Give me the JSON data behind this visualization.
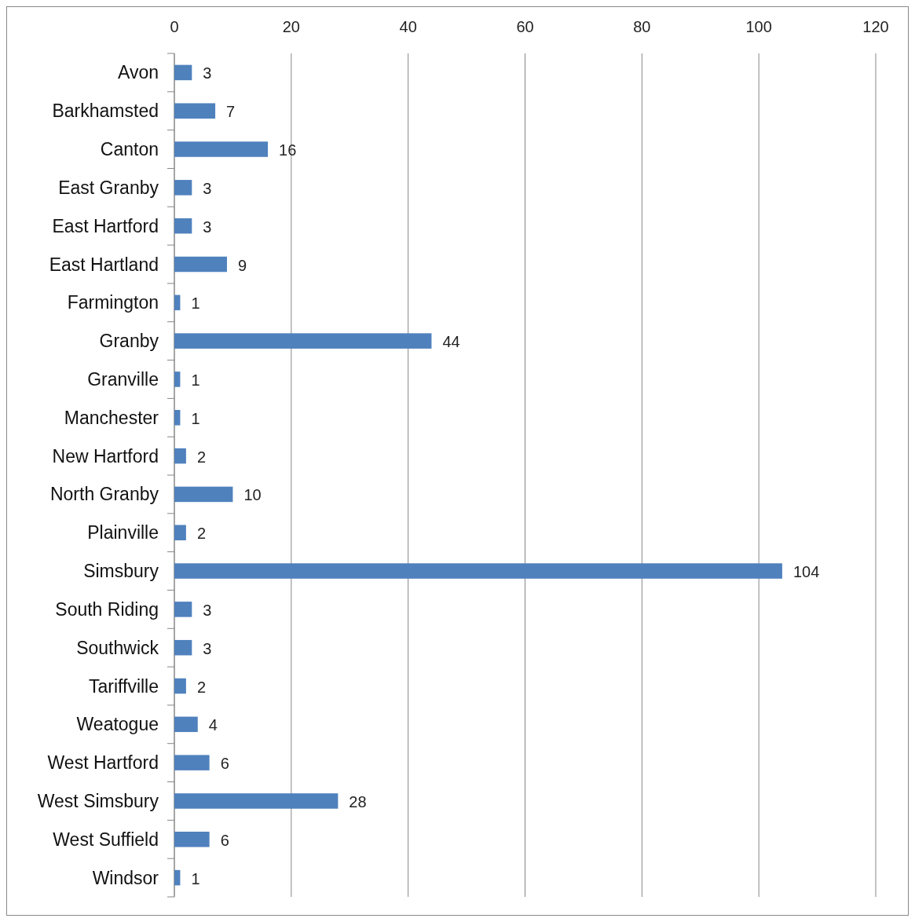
{
  "chart_data": {
    "type": "bar",
    "orientation": "horizontal",
    "categories": [
      "Avon",
      "Barkhamsted",
      "Canton",
      "East Granby",
      "East Hartford",
      "East Hartland",
      "Farmington",
      "Granby",
      "Granville",
      "Manchester",
      "New Hartford",
      "North Granby",
      "Plainville",
      "Simsbury",
      "South Riding",
      "Southwick",
      "Tariffville",
      "Weatogue",
      "West Hartford",
      "West Simsbury",
      "West Suffield",
      "Windsor"
    ],
    "values": [
      3,
      7,
      16,
      3,
      3,
      9,
      1,
      44,
      1,
      1,
      2,
      10,
      2,
      104,
      3,
      3,
      2,
      4,
      6,
      28,
      6,
      1
    ],
    "color": "#4f81bd",
    "xlim": [
      0,
      120
    ],
    "xticks": [
      0,
      20,
      40,
      60,
      80,
      100,
      120
    ],
    "grid": "x",
    "data_labels": true
  }
}
